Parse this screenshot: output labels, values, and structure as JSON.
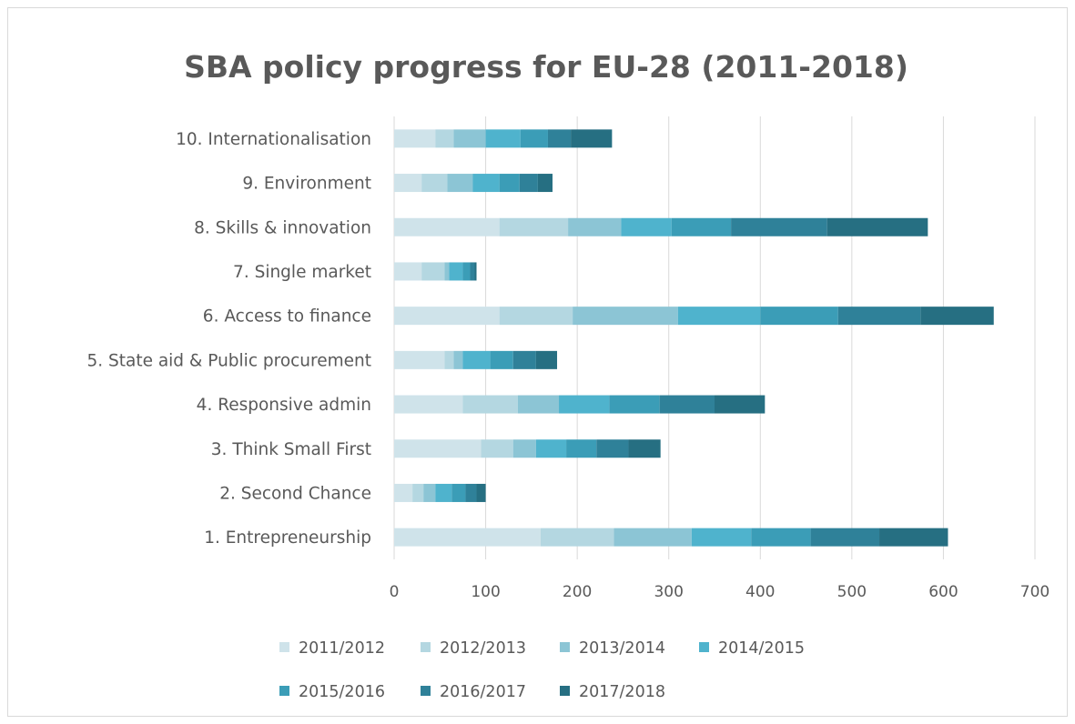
{
  "chart_data": {
    "type": "bar",
    "orientation": "horizontal",
    "stacked": true,
    "title": "SBA policy progress for EU-28 (2011-2018)",
    "xlabel": "",
    "ylabel": "",
    "xlim": [
      0,
      700
    ],
    "x_ticks": [
      0,
      100,
      200,
      300,
      400,
      500,
      600,
      700
    ],
    "grid": "vertical",
    "legend_position": "bottom",
    "categories": [
      "1. Entrepreneurship",
      "2. Second Chance",
      "3. Think Small First",
      "4. Responsive admin",
      "5. State aid & Public procurement",
      "6. Access to finance",
      "7. Single market",
      "8. Skills & innovation",
      "9. Environment",
      "10. Internationalisation"
    ],
    "series": [
      {
        "name": "2011/2012",
        "color": "#cfe3ea",
        "values": [
          160,
          20,
          95,
          75,
          55,
          115,
          30,
          115,
          30,
          45
        ]
      },
      {
        "name": "2012/2013",
        "color": "#b4d7e1",
        "values": [
          80,
          12,
          35,
          60,
          10,
          80,
          25,
          75,
          28,
          20
        ]
      },
      {
        "name": "2013/2014",
        "color": "#8cc5d5",
        "values": [
          85,
          13,
          25,
          45,
          10,
          115,
          5,
          58,
          28,
          35
        ]
      },
      {
        "name": "2014/2015",
        "color": "#4fb3cd",
        "values": [
          65,
          18,
          33,
          55,
          30,
          90,
          15,
          55,
          29,
          38
        ]
      },
      {
        "name": "2015/2016",
        "color": "#3b9db7",
        "values": [
          65,
          15,
          33,
          55,
          25,
          85,
          8,
          65,
          22,
          30
        ]
      },
      {
        "name": "2016/2017",
        "color": "#2f8199",
        "values": [
          75,
          12,
          35,
          60,
          25,
          90,
          5,
          105,
          20,
          25
        ]
      },
      {
        "name": "2017/2018",
        "color": "#266f82",
        "values": [
          75,
          10,
          35,
          55,
          23,
          80,
          2,
          110,
          16,
          45
        ]
      }
    ]
  }
}
